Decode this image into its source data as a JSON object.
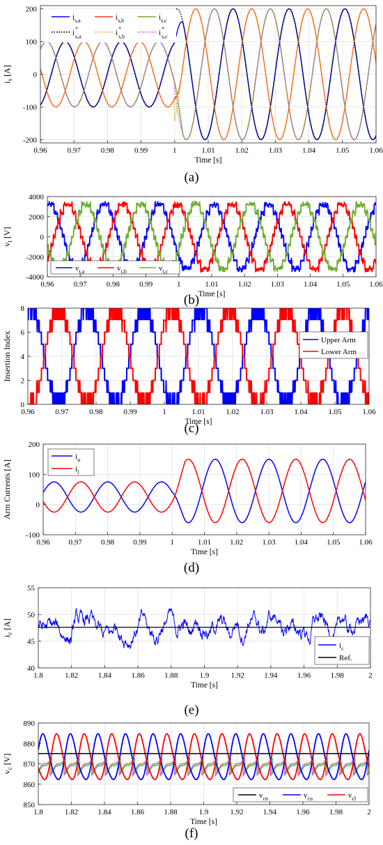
{
  "chart_data": [
    {
      "panel": "(a)",
      "type": "line",
      "xlabel": "Time [s]",
      "ylabel_main": "i",
      "ylabel_sub": "s",
      "ylabel_unit": " [A]",
      "xlim": [
        0.96,
        1.06
      ],
      "ylim": [
        -210,
        210
      ],
      "xticks": [
        0.96,
        0.97,
        0.98,
        0.99,
        1,
        1.01,
        1.02,
        1.03,
        1.04,
        1.05,
        1.06
      ],
      "yticks": [
        -200,
        -100,
        0,
        100,
        200
      ],
      "grid": true,
      "legend_position": "top-left",
      "waveform": {
        "freq_hz": 60,
        "amplitude_before": 100,
        "amplitude_after": 200,
        "step_time": 1.0
      },
      "series": [
        {
          "name": "i",
          "sub": "s,a",
          "color": "#0000ff",
          "dash": "solid",
          "phase_deg": 0
        },
        {
          "name": "i",
          "sub": "s,b",
          "color": "#ff3b1f",
          "dash": "solid",
          "phase_deg": -120
        },
        {
          "name": "i",
          "sub": "s,c",
          "color": "#77ac30",
          "dash": "solid",
          "phase_deg": 120
        },
        {
          "name": "i",
          "sub": "s,a",
          "sup": "*",
          "color": "#000000",
          "dash": "dotted",
          "phase_deg": 0
        },
        {
          "name": "i",
          "sub": "s,b",
          "sup": "*",
          "color": "#edb120",
          "dash": "dotted",
          "phase_deg": -120
        },
        {
          "name": "i",
          "sub": "s,c",
          "sup": "*",
          "color": "#d050d0",
          "dash": "dotted",
          "phase_deg": 120
        }
      ]
    },
    {
      "panel": "(b)",
      "type": "line",
      "xlabel": "Time [s]",
      "ylabel_main": "v",
      "ylabel_sub": "t",
      "ylabel_unit": " [V]",
      "xlim": [
        0.96,
        1.06
      ],
      "ylim": [
        -4000,
        4000
      ],
      "xticks": [
        0.96,
        0.97,
        0.98,
        0.99,
        1,
        1.01,
        1.02,
        1.03,
        1.04,
        1.05,
        1.06
      ],
      "yticks": [
        -4000,
        -2000,
        0,
        2000,
        4000
      ],
      "grid": true,
      "legend_position": "bottom-left",
      "waveform": {
        "freq_hz": 60,
        "amplitude": 3200,
        "levels": 8
      },
      "series": [
        {
          "name": "v",
          "sub": "t,a",
          "color": "#0000ff",
          "phase_deg": 0
        },
        {
          "name": "v",
          "sub": "t,b",
          "color": "#ff0000",
          "phase_deg": -120
        },
        {
          "name": "v",
          "sub": "t,c",
          "color": "#70ad30",
          "phase_deg": 120
        }
      ]
    },
    {
      "panel": "(c)",
      "type": "line",
      "xlabel": "Time [s]",
      "ylabel": "Insertion Index",
      "xlim": [
        0.96,
        1.06
      ],
      "ylim": [
        0,
        8
      ],
      "xticks": [
        0.96,
        0.97,
        0.98,
        0.99,
        1,
        1.01,
        1.02,
        1.03,
        1.04,
        1.05,
        1.06
      ],
      "yticks": [
        0,
        2,
        4,
        6,
        8
      ],
      "grid": true,
      "legend_position": "top-right",
      "waveform": {
        "freq_hz": 60,
        "levels": 8
      },
      "series": [
        {
          "name": "Upper Arm",
          "color": "#0000ff"
        },
        {
          "name": "Lower Arm",
          "color": "#ff0000"
        }
      ]
    },
    {
      "panel": "(d)",
      "type": "line",
      "xlabel": "Time [s]",
      "ylabel": "Arm Currents [A]",
      "xlim": [
        0.96,
        1.06
      ],
      "ylim": [
        -100,
        200
      ],
      "xticks": [
        0.96,
        0.97,
        0.98,
        0.99,
        1,
        1.01,
        1.02,
        1.03,
        1.04,
        1.05,
        1.06
      ],
      "yticks": [
        -100,
        0,
        100,
        200
      ],
      "grid": true,
      "legend_position": "top-left",
      "waveform": {
        "freq_hz": 60,
        "offset_before": 25,
        "amplitude_before": 50,
        "offset_after": 45,
        "amplitude_after": 105,
        "step_time": 1.0
      },
      "series": [
        {
          "name": "i",
          "sub": "u",
          "color": "#0000ff"
        },
        {
          "name": "i",
          "sub": "l",
          "color": "#ff0000"
        }
      ]
    },
    {
      "panel": "(e)",
      "type": "line",
      "xlabel": "Time [s]",
      "ylabel_main": "i",
      "ylabel_sub": "c",
      "ylabel_unit": " [A]",
      "xlim": [
        1.8,
        2.0
      ],
      "ylim": [
        40,
        55
      ],
      "xticks": [
        1.8,
        1.82,
        1.84,
        1.86,
        1.88,
        1.9,
        1.92,
        1.94,
        1.96,
        1.98,
        2
      ],
      "yticks": [
        40,
        45,
        50,
        55
      ],
      "grid": true,
      "legend_position": "bottom-right",
      "reference": 47.6,
      "series": [
        {
          "name": "i",
          "sub": "c",
          "color": "#0000ff"
        },
        {
          "name": "Ref.",
          "color": "#000000"
        }
      ]
    },
    {
      "panel": "(f)",
      "type": "line",
      "xlabel": "Time [s]",
      "ylabel_main": "v",
      "ylabel_sub": "c",
      "ylabel_unit": " [V]",
      "xlim": [
        1.8,
        2.0
      ],
      "ylim": [
        850,
        890
      ],
      "xticks": [
        1.8,
        1.82,
        1.84,
        1.86,
        1.88,
        1.9,
        1.92,
        1.94,
        1.96,
        1.98,
        2
      ],
      "yticks": [
        850,
        860,
        870,
        880,
        890
      ],
      "grid": true,
      "legend_position": "bottom-right",
      "reference": 875,
      "waveform": {
        "freq_hz": 60,
        "mean": 872.5,
        "amplitude": 11
      },
      "series": [
        {
          "name": "v",
          "sub": "cn",
          "color": "#000000"
        },
        {
          "name": "v",
          "sub": "cu",
          "color": "#0000ff"
        },
        {
          "name": "v",
          "sub": "cl",
          "color": "#ff0000"
        }
      ]
    }
  ]
}
